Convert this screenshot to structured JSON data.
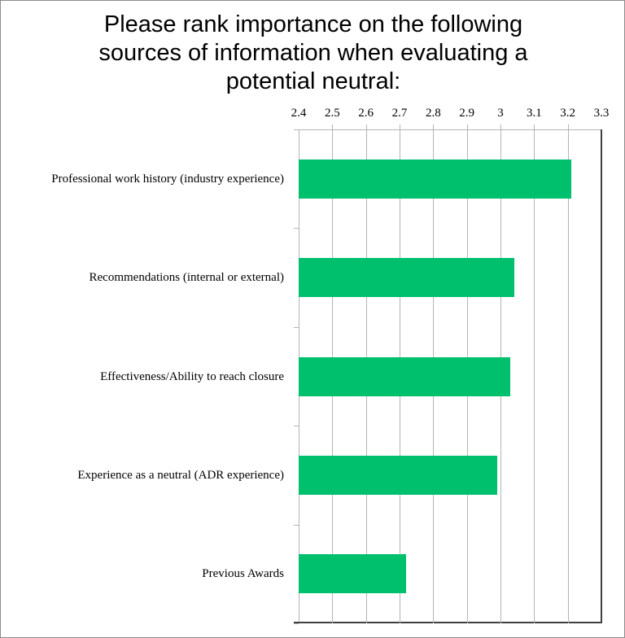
{
  "chart_data": {
    "type": "bar",
    "orientation": "horizontal",
    "title": "Please rank importance on the following sources of information when evaluating a potential neutral:",
    "title_lines": [
      "Please rank importance on the following",
      "sources of information when evaluating a",
      "potential neutral:"
    ],
    "categories": [
      "Professional work history (industry experience)",
      "Recommendations (internal or external)",
      "Effectiveness/Ability to reach closure",
      "Experience as a neutral (ADR experience)",
      "Previous Awards"
    ],
    "values": [
      3.21,
      3.04,
      3.03,
      2.99,
      2.72
    ],
    "xlabel": "",
    "ylabel": "",
    "xlim": [
      2.4,
      3.3
    ],
    "x_ticks": [
      "2.4",
      "2.5",
      "2.6",
      "2.7",
      "2.8",
      "2.9",
      "3",
      "3.1",
      "3.2",
      "3.3"
    ],
    "x_axis_position": "top",
    "grid": true,
    "legend": null,
    "bar_color": "#00c06e"
  }
}
